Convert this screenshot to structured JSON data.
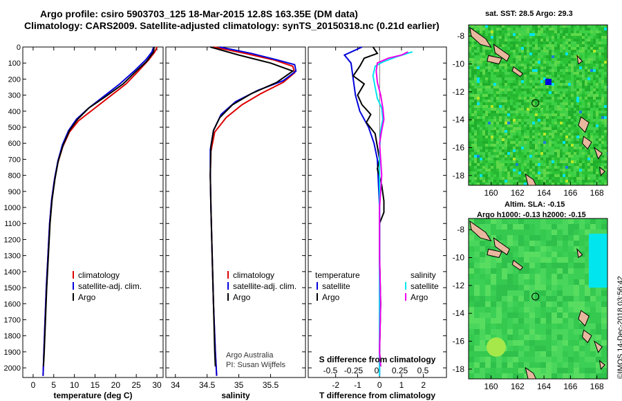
{
  "header": {
    "title_line1": "Argo profile: csiro 5903703_125 18-Mar-2015 12.8S 163.35E (DM data)",
    "title_line2": "Climatology: CARS2009. Satellite-adjusted climatology: synTS_20150318.nc (0.21d earlier)"
  },
  "colors": {
    "climatology": "#dd0000",
    "satellite": "#0000dd",
    "argo": "#000000",
    "sat_salinity": "#00e5ee",
    "argo_salinity_diff": "#ee00ee"
  },
  "depth_axis": {
    "ticks": [
      0,
      100,
      200,
      300,
      400,
      500,
      600,
      700,
      800,
      900,
      1000,
      1100,
      1200,
      1300,
      1400,
      1500,
      1600,
      1700,
      1800,
      1900,
      2000
    ],
    "range": [
      0,
      2060
    ]
  },
  "chart_data": [
    {
      "type": "line",
      "xlabel": "temperature (deg C)",
      "xticks": [
        0,
        5,
        10,
        15,
        20,
        25,
        30
      ],
      "xlim": [
        -2.5,
        31.5
      ],
      "ylim": [
        0,
        2060
      ],
      "legend": [
        "climatology",
        "satellite-adj. clim.",
        "Argo"
      ],
      "series": [
        {
          "name": "climatology",
          "color": "#dd0000",
          "points": [
            [
              30,
              0
            ],
            [
              29.5,
              30
            ],
            [
              28,
              80
            ],
            [
              25.5,
              150
            ],
            [
              22.5,
              230
            ],
            [
              18.5,
              310
            ],
            [
              14.5,
              390
            ],
            [
              11,
              460
            ],
            [
              8.8,
              530
            ],
            [
              7.2,
              620
            ],
            [
              6,
              720
            ],
            [
              5.2,
              820
            ],
            [
              4.5,
              950
            ],
            [
              4,
              1100
            ],
            [
              3.6,
              1300
            ],
            [
              3.2,
              1500
            ],
            [
              2.9,
              1700
            ],
            [
              2.6,
              1900
            ],
            [
              2.4,
              2050
            ]
          ]
        },
        {
          "name": "satellite-adj. clim.",
          "color": "#0000dd",
          "points": [
            [
              29.2,
              0
            ],
            [
              28.8,
              30
            ],
            [
              27.3,
              80
            ],
            [
              24.5,
              150
            ],
            [
              21,
              230
            ],
            [
              17,
              310
            ],
            [
              13.5,
              380
            ],
            [
              10.5,
              450
            ],
            [
              8.6,
              520
            ],
            [
              7.1,
              610
            ],
            [
              6,
              710
            ],
            [
              5.2,
              820
            ],
            [
              4.5,
              950
            ],
            [
              4,
              1100
            ],
            [
              3.6,
              1300
            ],
            [
              3.2,
              1500
            ],
            [
              2.9,
              1700
            ],
            [
              2.6,
              1900
            ],
            [
              2.4,
              2050
            ]
          ]
        },
        {
          "name": "Argo",
          "color": "#000000",
          "points": [
            [
              29.3,
              0
            ],
            [
              29.2,
              30
            ],
            [
              27.5,
              90
            ],
            [
              25,
              150
            ],
            [
              21.8,
              230
            ],
            [
              17.5,
              310
            ],
            [
              13.5,
              380
            ],
            [
              10.8,
              450
            ],
            [
              8.8,
              520
            ],
            [
              7.3,
              610
            ],
            [
              6.1,
              710
            ],
            [
              5.3,
              820
            ],
            [
              4.6,
              950
            ],
            [
              4.1,
              1100
            ],
            [
              3.7,
              1300
            ],
            [
              3.3,
              1500
            ],
            [
              3,
              1700
            ],
            [
              2.7,
              1900
            ],
            [
              2.5,
              1990
            ]
          ]
        }
      ]
    },
    {
      "type": "line",
      "xlabel": "salinity",
      "xticks": [
        "34",
        "34.5",
        "35",
        "35.5"
      ],
      "xtick_values": [
        34,
        34.5,
        35,
        35.5
      ],
      "xlim": [
        33.85,
        36.05
      ],
      "ylim": [
        0,
        2060
      ],
      "legend": [
        "climatology",
        "satellite-adj. clim.",
        "Argo"
      ],
      "annotations": [
        "Argo Australia",
        "PI: Susan Wijffels"
      ],
      "series": [
        {
          "name": "climatology",
          "color": "#dd0000",
          "points": [
            [
              34.6,
              0
            ],
            [
              35.1,
              40
            ],
            [
              35.55,
              80
            ],
            [
              35.85,
              120
            ],
            [
              35.88,
              160
            ],
            [
              35.7,
              220
            ],
            [
              35.35,
              290
            ],
            [
              35.05,
              360
            ],
            [
              34.8,
              440
            ],
            [
              34.62,
              530
            ],
            [
              34.56,
              650
            ],
            [
              34.55,
              800
            ],
            [
              34.56,
              1000
            ],
            [
              34.58,
              1300
            ],
            [
              34.6,
              1600
            ],
            [
              34.63,
              1900
            ],
            [
              34.65,
              2050
            ]
          ]
        },
        {
          "name": "satellite-adj. clim.",
          "color": "#0000dd",
          "points": [
            [
              34.7,
              0
            ],
            [
              35.2,
              40
            ],
            [
              35.6,
              80
            ],
            [
              35.88,
              110
            ],
            [
              35.9,
              150
            ],
            [
              35.7,
              210
            ],
            [
              35.3,
              270
            ],
            [
              34.95,
              340
            ],
            [
              34.72,
              420
            ],
            [
              34.6,
              520
            ],
            [
              34.55,
              640
            ],
            [
              34.55,
              800
            ],
            [
              34.56,
              1000
            ],
            [
              34.58,
              1300
            ],
            [
              34.6,
              1600
            ],
            [
              34.63,
              1900
            ],
            [
              34.65,
              2050
            ]
          ]
        },
        {
          "name": "Argo",
          "color": "#000000",
          "points": [
            [
              34.55,
              0
            ],
            [
              35,
              50
            ],
            [
              35.5,
              100
            ],
            [
              35.85,
              150
            ],
            [
              35.6,
              220
            ],
            [
              35.2,
              290
            ],
            [
              34.9,
              360
            ],
            [
              34.7,
              440
            ],
            [
              34.6,
              520
            ],
            [
              34.56,
              620
            ],
            [
              34.55,
              800
            ],
            [
              34.56,
              1000
            ],
            [
              34.58,
              1300
            ],
            [
              34.6,
              1600
            ],
            [
              34.62,
              1900
            ],
            [
              34.63,
              1990
            ]
          ]
        }
      ]
    },
    {
      "type": "line",
      "xlabel": "T difference from climatology",
      "title_in_plot": "S difference from climatology",
      "xticks": [
        "-2",
        "-1",
        "0",
        "1",
        "2"
      ],
      "xtick_values": [
        -2,
        -1,
        0,
        1,
        2
      ],
      "xlim": [
        -3.25,
        3.05
      ],
      "ylim": [
        0,
        2060
      ],
      "s_axis": {
        "ticks": [
          "-0.5",
          "-0.25",
          "0",
          "0.25",
          "0.5"
        ],
        "values": [
          -0.5,
          -0.25,
          0,
          0.25,
          0.5
        ]
      },
      "legend_left": {
        "heading": "temperature",
        "items": [
          "satellite",
          "Argo"
        ]
      },
      "legend_right": {
        "heading": "salinity",
        "items": [
          "satellite",
          "Argo"
        ]
      },
      "series": [
        {
          "name": "T satellite",
          "color": "#0000dd",
          "points": [
            [
              -0.8,
              0
            ],
            [
              -1.6,
              50
            ],
            [
              -1.3,
              100
            ],
            [
              -1.2,
              200
            ],
            [
              -1.1,
              300
            ],
            [
              -0.9,
              400
            ],
            [
              -0.5,
              500
            ],
            [
              -0.25,
              600
            ],
            [
              -0.1,
              700
            ],
            [
              -0.05,
              850
            ],
            [
              0,
              1000
            ],
            [
              0,
              1300
            ],
            [
              0,
              1600
            ],
            [
              0,
              1900
            ],
            [
              0,
              2050
            ]
          ]
        },
        {
          "name": "T Argo",
          "color": "#000000",
          "points": [
            [
              -0.3,
              0
            ],
            [
              -0.1,
              40
            ],
            [
              -0.7,
              70
            ],
            [
              -0.9,
              120
            ],
            [
              -1.2,
              180
            ],
            [
              -0.7,
              230
            ],
            [
              -1.0,
              300
            ],
            [
              -0.8,
              360
            ],
            [
              -0.4,
              420
            ],
            [
              -0.6,
              470
            ],
            [
              -0.2,
              540
            ],
            [
              -0.1,
              620
            ],
            [
              0,
              700
            ],
            [
              -0.1,
              760
            ],
            [
              0.1,
              860
            ],
            [
              0.2,
              960
            ],
            [
              0.2,
              1030
            ],
            [
              0,
              1100
            ],
            [
              0,
              1300
            ],
            [
              0.05,
              1600
            ],
            [
              0,
              1900
            ],
            [
              0.05,
              1990
            ]
          ]
        },
        {
          "name": "S satellite",
          "color": "#00e5ee",
          "points": [
            [
              1.5,
              30
            ],
            [
              0.8,
              60
            ],
            [
              0.2,
              90
            ],
            [
              -0.2,
              120
            ],
            [
              -0.3,
              180
            ],
            [
              -0.2,
              250
            ],
            [
              -0.1,
              320
            ],
            [
              0.1,
              380
            ],
            [
              0.15,
              450
            ],
            [
              0.05,
              520
            ],
            [
              0,
              650
            ],
            [
              0,
              800
            ],
            [
              0,
              1000
            ],
            [
              0,
              1300
            ],
            [
              0,
              1600
            ],
            [
              0,
              1900
            ],
            [
              0,
              2050
            ]
          ]
        },
        {
          "name": "S Argo",
          "color": "#ee00ee",
          "points": [
            [
              1.3,
              30
            ],
            [
              1.0,
              50
            ],
            [
              0.4,
              70
            ],
            [
              -0.1,
              100
            ],
            [
              -0.15,
              150
            ],
            [
              -0.1,
              220
            ],
            [
              0.05,
              300
            ],
            [
              0.15,
              380
            ],
            [
              0.2,
              450
            ],
            [
              0.1,
              520
            ],
            [
              0,
              600
            ],
            [
              0.05,
              700
            ],
            [
              0.1,
              800
            ],
            [
              0.05,
              900
            ],
            [
              0,
              1000
            ],
            [
              0,
              1300
            ],
            [
              0.05,
              1600
            ],
            [
              0,
              1900
            ],
            [
              0.05,
              1990
            ]
          ]
        }
      ]
    },
    {
      "type": "heatmap",
      "title": "sat. SST: 28.5 Argo: 29.3",
      "xticks": [
        "160",
        "162",
        "164",
        "166",
        "168"
      ],
      "xtick_values": [
        160,
        162,
        164,
        166,
        168
      ],
      "yticks": [
        "-8",
        "-10",
        "-12",
        "-14",
        "-16",
        "-18"
      ],
      "ytick_values": [
        -8,
        -10,
        -12,
        -14,
        -16,
        -18
      ],
      "xlim": [
        158.3,
        168.8
      ],
      "ylim": [
        -18.7,
        -7.2
      ],
      "marker": {
        "lon": 163.35,
        "lat": -12.8
      }
    },
    {
      "type": "heatmap",
      "title_line1": "Altim. SLA: -0.15",
      "title_line2": "Argo h1000: -0.13 h2000: -0.15",
      "xticks": [
        "160",
        "162",
        "164",
        "166",
        "168"
      ],
      "xtick_values": [
        160,
        162,
        164,
        166,
        168
      ],
      "yticks": [
        "-8",
        "-10",
        "-12",
        "-14",
        "-16",
        "-18"
      ],
      "ytick_values": [
        -8,
        -10,
        -12,
        -14,
        -16,
        -18
      ],
      "xlim": [
        158.3,
        168.8
      ],
      "ylim": [
        -18.7,
        -7.2
      ],
      "marker": {
        "lon": 163.35,
        "lat": -12.8
      }
    }
  ],
  "credits": {
    "imos": "©IMOS 14-Dec-2018 03:56:42"
  }
}
